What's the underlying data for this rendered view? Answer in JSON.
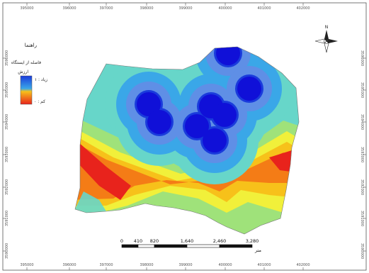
{
  "legend": {
    "title": "راهنما",
    "subtitle": "فاصله از ایستگاه",
    "value_label": "ارزش",
    "high_label": "زیاد : ۱",
    "low_label": "کم : ۰",
    "high_color": "#1a3bdc",
    "low_color": "#e8231c"
  },
  "scale_bar": {
    "ticks": [
      "0",
      "410",
      "820",
      "1,640",
      "2,460",
      "3,280"
    ],
    "unit": "متر"
  },
  "grid": {
    "x_ticks": [
      "395000",
      "396000",
      "397000",
      "398000",
      "399000",
      "400000",
      "401000",
      "402000"
    ],
    "y_ticks": [
      "3596000",
      "3595000",
      "3594000",
      "3593000",
      "3592000",
      "3591000",
      "3590000"
    ]
  },
  "north_arrow": {
    "label": "N",
    "icon": "north-arrow-icon"
  },
  "zone_colors": [
    "#e8231c",
    "#f47c16",
    "#f7c11a",
    "#f1f03a",
    "#9fe27a",
    "#67d6c9",
    "#3aa7e8",
    "#1a3bdc"
  ]
}
